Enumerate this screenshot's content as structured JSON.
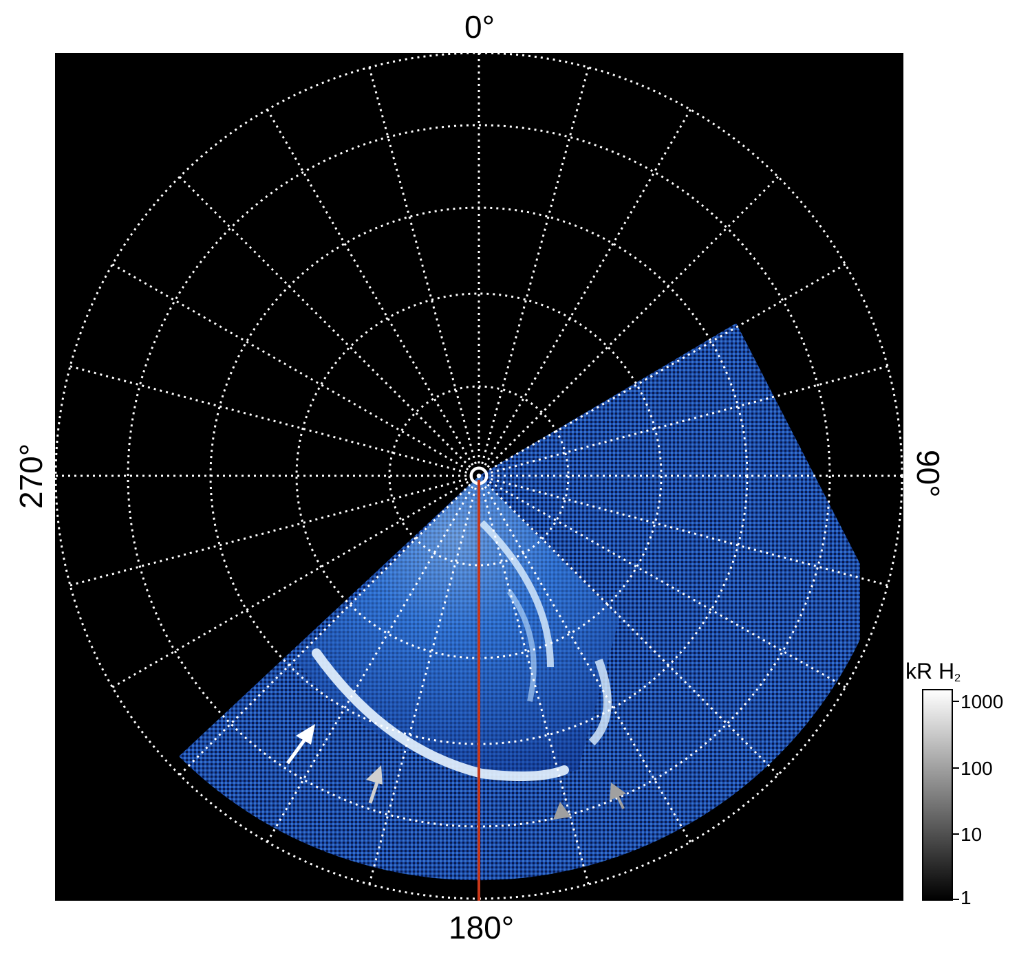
{
  "figure": {
    "labels": {
      "top": "0°",
      "bottom": "180°",
      "left": "270°",
      "right": "90°"
    },
    "colors": {
      "background": "#000000",
      "grid": "#ffffff",
      "meridian_line": "#c8371a",
      "aurora": "#2f7fe8",
      "arrow_primary": "#ffffff",
      "arrow_secondary": "#b0b0b0"
    },
    "colorbar": {
      "title": "kR H",
      "title_subscript": "2",
      "ticks": [
        "1000",
        "100",
        "10",
        "1"
      ],
      "scale": "log",
      "colormap": "grayscale"
    },
    "annotations": {
      "arrows": [
        "white arrow",
        "light gray arrow",
        "gray arrow",
        "gray arrow"
      ]
    }
  }
}
